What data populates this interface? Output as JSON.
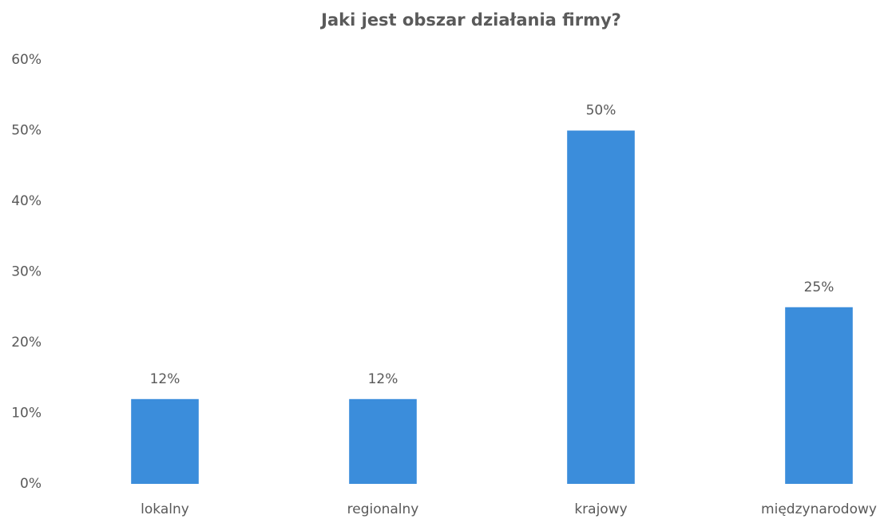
{
  "chart_data": {
    "type": "bar",
    "title": "Jaki jest obszar działania firmy?",
    "categories": [
      "lokalny",
      "regionalny",
      "krajowy",
      "międzynarodowy"
    ],
    "values": [
      12,
      12,
      50,
      25
    ],
    "value_labels": [
      "12%",
      "12%",
      "50%",
      "25%"
    ],
    "color": "#3b8ddb",
    "ylim": [
      0,
      60
    ],
    "yticks": [
      {
        "value": 0,
        "label": "0%"
      },
      {
        "value": 10,
        "label": "10%"
      },
      {
        "value": 20,
        "label": "20%"
      },
      {
        "value": 30,
        "label": "30%"
      },
      {
        "value": 40,
        "label": "40%"
      },
      {
        "value": 50,
        "label": "50%"
      },
      {
        "value": 60,
        "label": "60%"
      }
    ],
    "grid": false
  }
}
